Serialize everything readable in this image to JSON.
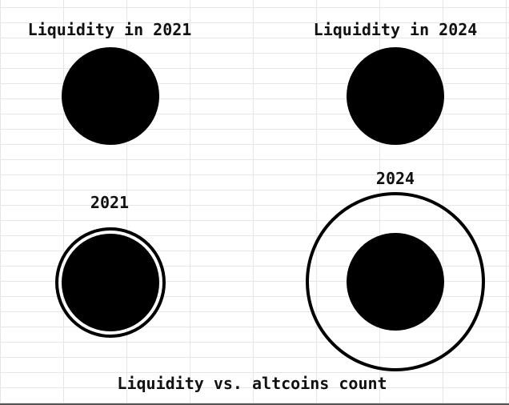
{
  "labels": {
    "top_left": "Liquidity in 2021",
    "top_right": "Liquidity in 2024",
    "bottom_left": "2021",
    "bottom_right": "2024",
    "caption": "Liquidity vs. altcoins count"
  },
  "colors": {
    "fill": "#000000",
    "grid": "#e6e6e6",
    "background": "#ffffff"
  }
}
